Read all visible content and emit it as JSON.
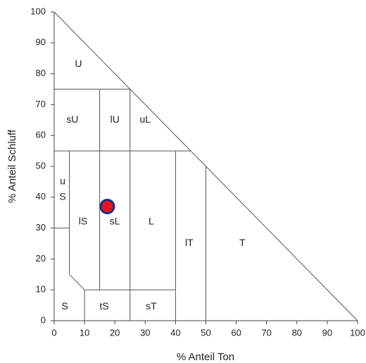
{
  "chart_data": {
    "type": "scatter",
    "xlabel": "% Anteil Ton",
    "ylabel": "% Anteil Schluff",
    "x": [
      17.5
    ],
    "values": [
      37
    ],
    "color": "#e8141c",
    "edgecolor": "#1c2f80",
    "xlim": [
      0,
      100
    ],
    "ylim": [
      0,
      100
    ],
    "xticks": [
      0,
      10,
      20,
      30,
      40,
      50,
      60,
      70,
      80,
      90,
      100
    ],
    "yticks": [
      0,
      10,
      20,
      30,
      40,
      50,
      60,
      70,
      80,
      90,
      100
    ],
    "region_labels": [
      "U",
      "sU",
      "lU",
      "uL",
      "u",
      "S",
      "lS",
      "sL",
      "L",
      "lT",
      "T",
      "S",
      "tS",
      "sT"
    ]
  }
}
